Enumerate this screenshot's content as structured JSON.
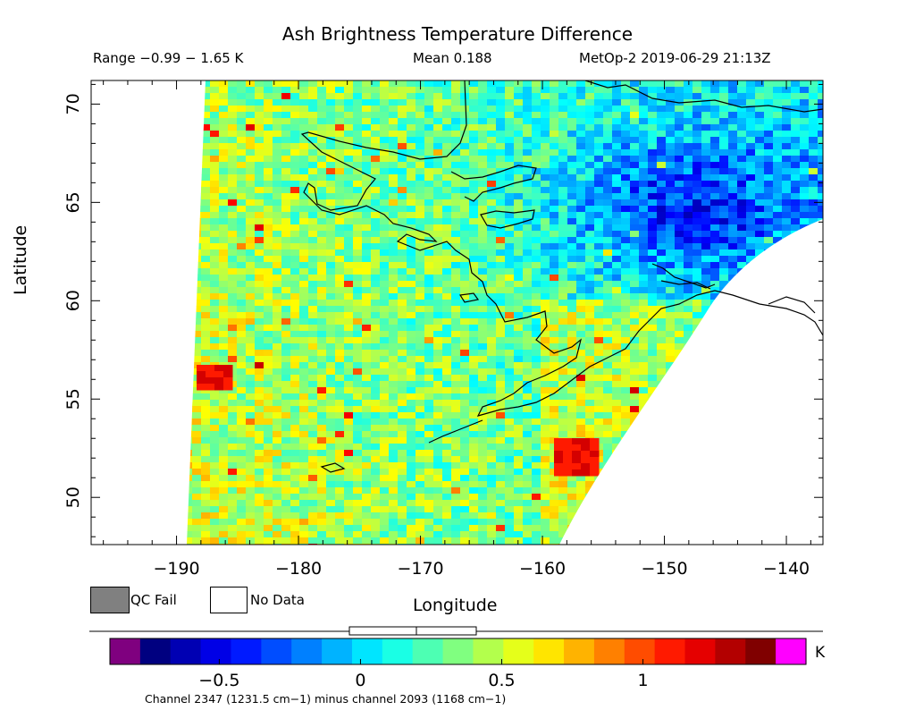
{
  "title": "Ash Brightness Temperature Difference",
  "header": {
    "range": "Range −0.99 − 1.65 K",
    "mean": "Mean 0.188",
    "satellite_time": "MetOp-2 2019-06-29 21:13Z"
  },
  "axes": {
    "xlabel": "Longitude",
    "ylabel": "Latitude",
    "xticks": [
      "−190",
      "−180",
      "−170",
      "−160",
      "−150",
      "−140"
    ],
    "yticks": [
      "50",
      "55",
      "60",
      "65",
      "70"
    ],
    "xlim": [
      -197,
      -137
    ],
    "ylim": [
      47.6,
      71.2
    ]
  },
  "legend": {
    "qc_fail": "QC Fail",
    "no_data": "No Data",
    "qc_fail_color": "#808080",
    "no_data_color": "#ffffff"
  },
  "colorbar": {
    "unit": "K",
    "ticks": [
      "−0.5",
      "0",
      "0.5",
      "1"
    ],
    "tick_values": [
      -0.5,
      0,
      0.5,
      1
    ],
    "vmin": -0.78,
    "vmax": 1.47,
    "low_color": "#7f007f",
    "high_color": "#ff00ff",
    "colormap": "jet"
  },
  "footnote": "Channel 2347 (1231.5 cm−1) minus channel 2093 (1168 cm−1)"
}
